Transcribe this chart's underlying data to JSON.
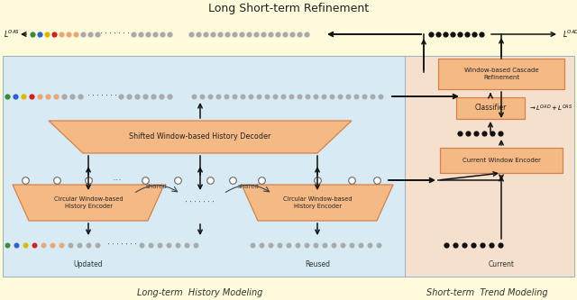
{
  "title": "Long Short-term Refinement",
  "bg_yellow": "#FEFADC",
  "bg_blue": "#D8EBF5",
  "bg_salmon": "#F5E0CE",
  "box_fill": "#F5B985",
  "box_edge": "#D4824A",
  "dot_dark": "#111111",
  "dot_green": "#3a8a3a",
  "dot_blue": "#3060cc",
  "dot_yellow": "#d8b800",
  "dot_red": "#cc2222",
  "dot_light": "#aaaaaa",
  "dot_peach": "#e8a878",
  "arrow_color": "#111111",
  "label_long": "Long-term  History Modeling",
  "label_short": "Short-term  Trend Modeling",
  "label_updated": "Updated",
  "label_reused": "Reused",
  "label_current": "Current",
  "label_shared1": "shared",
  "label_shared2": "shared",
  "box1_text": "Circular Window-based\nHistory Encoder",
  "box2_text": "Circular Window-based\nHistory Encoder",
  "box3_text": "Shifted Window-based History Decoder",
  "box4_text": "Current Window Encoder",
  "box5_text": "Classifier",
  "box6_text": "Window-based Cascade\nRefinement"
}
